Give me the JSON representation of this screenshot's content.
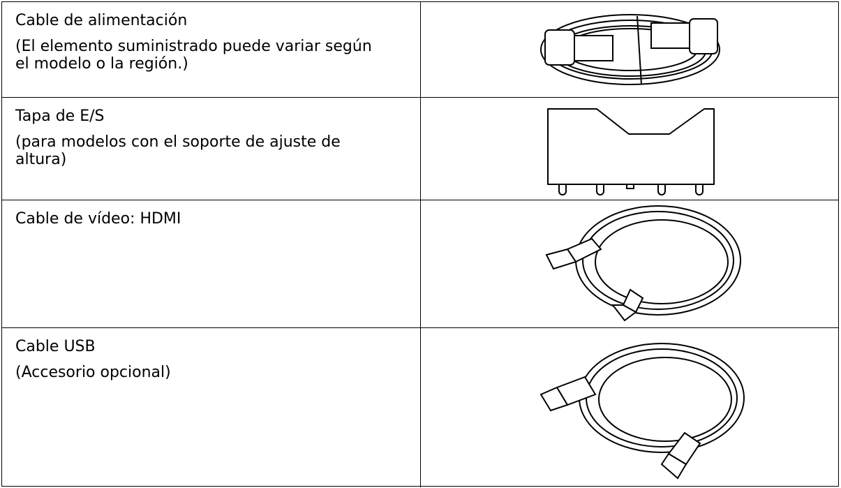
{
  "table": {
    "rows": [
      {
        "title": "Cable de alimentación",
        "note": "(El elemento suministrado puede variar según el modelo o la región.)"
      },
      {
        "title": "Tapa de E/S",
        "note": "(para modelos con el soporte de ajuste de altura)"
      },
      {
        "title": "Cable de vídeo: HDMI"
      },
      {
        "title": "Cable USB",
        "note": "(Accesorio opcional)"
      }
    ]
  }
}
